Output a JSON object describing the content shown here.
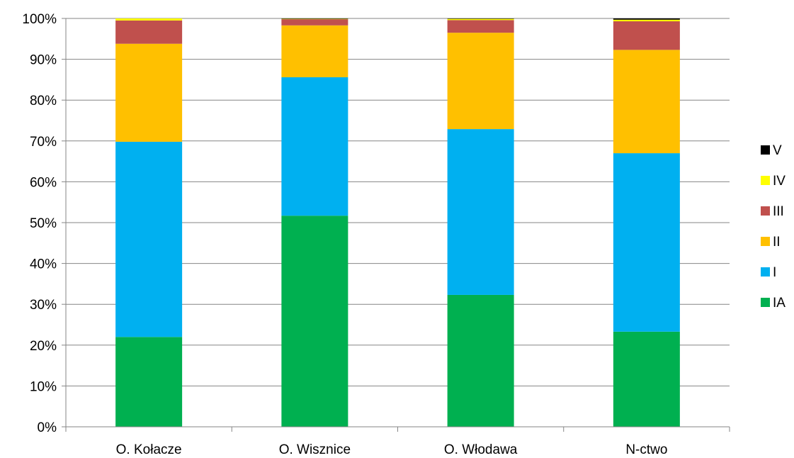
{
  "chart_data": {
    "type": "bar",
    "stacked": true,
    "percent_stacked": true,
    "categories": [
      "O. Kołacze",
      "O. Wisznice",
      "O. Włodawa",
      "N-ctwo"
    ],
    "series": [
      {
        "name": "IA",
        "color": "#00B050",
        "values": [
          22.0,
          51.7,
          32.3,
          23.3
        ]
      },
      {
        "name": "I",
        "color": "#00B0F0",
        "values": [
          47.8,
          33.9,
          40.6,
          43.7
        ]
      },
      {
        "name": "II",
        "color": "#FFC000",
        "values": [
          24.0,
          12.7,
          23.6,
          25.3
        ]
      },
      {
        "name": "III",
        "color": "#C0504D",
        "values": [
          5.7,
          1.5,
          3.1,
          7.0
        ]
      },
      {
        "name": "IV",
        "color": "#FFFF00",
        "values": [
          0.5,
          0.1,
          0.3,
          0.4
        ]
      },
      {
        "name": "V",
        "color": "#000000",
        "values": [
          0.0,
          0.1,
          0.1,
          0.3
        ]
      }
    ],
    "y_ticks": [
      "0%",
      "10%",
      "20%",
      "30%",
      "40%",
      "50%",
      "60%",
      "70%",
      "80%",
      "90%",
      "100%"
    ],
    "ylim": [
      0,
      100
    ],
    "grid": true,
    "legend_position": "right",
    "title": "",
    "xlabel": "",
    "ylabel": ""
  }
}
